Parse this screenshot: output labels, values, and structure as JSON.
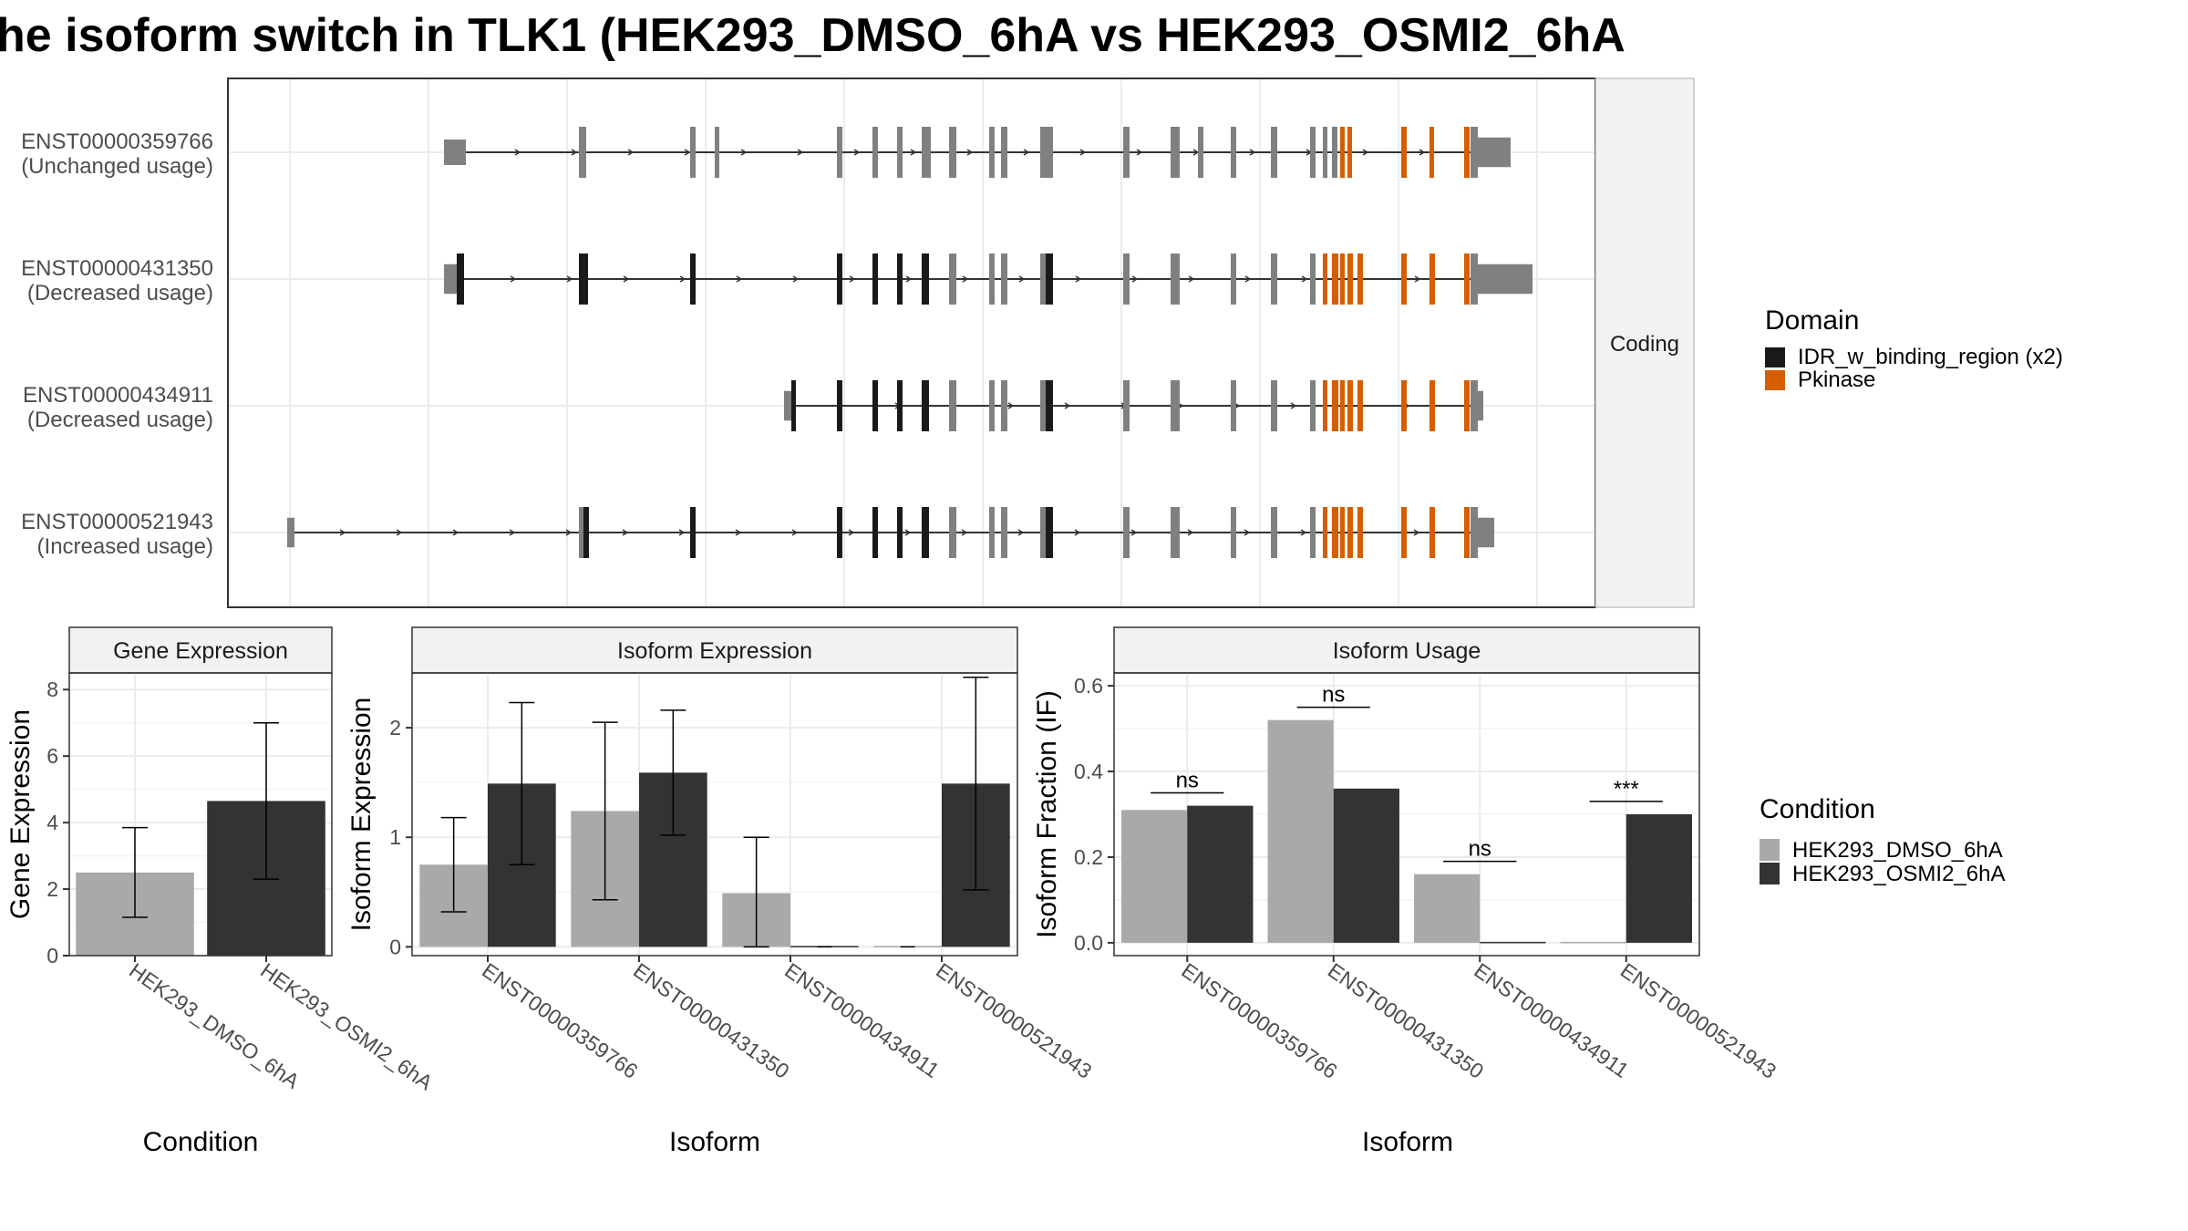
{
  "title": "he isoform switch in TLK1 (HEK293_DMSO_6hA vs HEK293_OSMI2_6hA",
  "colors": {
    "exon_noncoding": "#808080",
    "exon_coding": "#808080",
    "idr": "#1a1a1a",
    "pkinase": "#d55e00",
    "line": "#333333",
    "dmso": "#a9a9a9",
    "osmi2": "#333333",
    "grid": "#ebebeb",
    "strip": "#f2f2f2"
  },
  "structure": {
    "strip_label": "Coding",
    "isoforms": [
      {
        "id": "ENST00000359766",
        "usage": "(Unchanged usage)"
      },
      {
        "id": "ENST00000431350",
        "usage": "(Decreased usage)"
      },
      {
        "id": "ENST00000434911",
        "usage": "(Decreased usage)"
      },
      {
        "id": "ENST00000521943",
        "usage": "(Increased usage)"
      }
    ]
  },
  "legend_domain": {
    "title": "Domain",
    "items": [
      {
        "label": "IDR_w_binding_region (x2)",
        "color": "#1a1a1a"
      },
      {
        "label": "Pkinase",
        "color": "#d55e00"
      }
    ]
  },
  "legend_condition": {
    "title": "Condition",
    "items": [
      {
        "label": "HEK293_DMSO_6hA",
        "color": "#a9a9a9"
      },
      {
        "label": "HEK293_OSMI2_6hA",
        "color": "#333333"
      }
    ]
  },
  "chart_data": [
    {
      "type": "bar",
      "title": "Gene Expression",
      "xlabel": "Condition",
      "ylabel": "Gene Expression",
      "ylim": [
        0,
        8.5
      ],
      "yticks": [
        0,
        2,
        4,
        6,
        8
      ],
      "categories": [
        "HEK293_DMSO_6hA",
        "HEK293_OSMI2_6hA"
      ],
      "values": [
        2.5,
        4.65
      ],
      "errors": [
        [
          1.15,
          3.85
        ],
        [
          2.3,
          7.0
        ]
      ]
    },
    {
      "type": "bar",
      "title": "Isoform Expression",
      "xlabel": "Isoform",
      "ylabel": "Isoform Expression",
      "ylim": [
        -0.08,
        2.5
      ],
      "yticks": [
        0,
        1,
        2
      ],
      "categories": [
        "ENST00000359766",
        "ENST00000431350",
        "ENST00000434911",
        "ENST00000521943"
      ],
      "series": [
        {
          "name": "HEK293_DMSO_6hA",
          "values": [
            0.75,
            1.24,
            0.49,
            0.0
          ],
          "errors": [
            [
              0.32,
              1.18
            ],
            [
              0.43,
              2.05
            ],
            [
              0.0,
              1.0
            ],
            [
              0.0,
              0.0
            ]
          ]
        },
        {
          "name": "HEK293_OSMI2_6hA",
          "values": [
            1.49,
            1.59,
            0.0,
            1.49
          ],
          "errors": [
            [
              0.75,
              2.23
            ],
            [
              1.02,
              2.16
            ],
            [
              0.0,
              0.0
            ],
            [
              0.52,
              2.46
            ]
          ]
        }
      ]
    },
    {
      "type": "bar",
      "title": "Isoform Usage",
      "xlabel": "Isoform",
      "ylabel": "Isoform Fraction (IF)",
      "ylim": [
        -0.03,
        0.63
      ],
      "yticks": [
        "0.0",
        "0.2",
        "0.4",
        "0.6"
      ],
      "categories": [
        "ENST00000359766",
        "ENST00000431350",
        "ENST00000434911",
        "ENST00000521943"
      ],
      "series": [
        {
          "name": "HEK293_DMSO_6hA",
          "values": [
            0.31,
            0.52,
            0.16,
            0.0
          ]
        },
        {
          "name": "HEK293_OSMI2_6hA",
          "values": [
            0.32,
            0.36,
            0.0,
            0.3
          ]
        }
      ],
      "significance": [
        {
          "label": "ns",
          "y": 0.35
        },
        {
          "label": "ns",
          "y": 0.55
        },
        {
          "label": "ns",
          "y": 0.19
        },
        {
          "label": "***",
          "y": 0.33
        }
      ]
    }
  ]
}
